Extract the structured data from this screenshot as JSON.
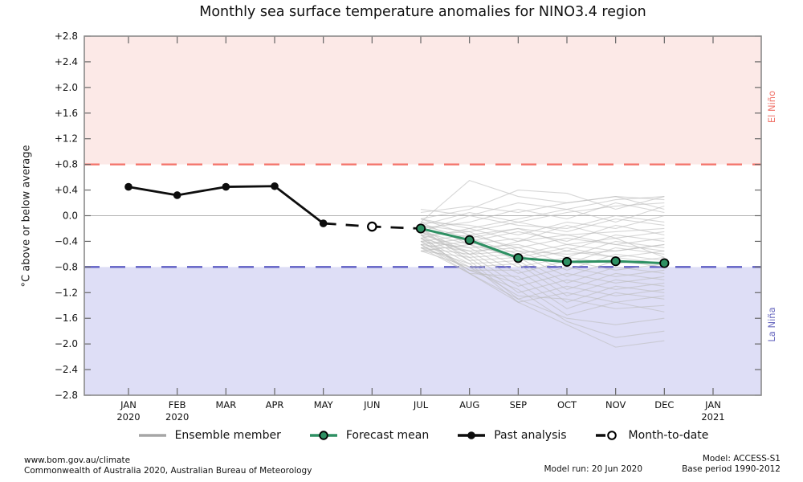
{
  "title": "Monthly sea surface temperature anomalies for NINO3.4 region",
  "side_labels": {
    "el_nino": "El Niño",
    "la_nina": "La Niña"
  },
  "legend": {
    "ensemble": "Ensemble member",
    "forecast_mean": "Forecast mean",
    "past_analysis": "Past analysis",
    "month_to_date": "Month-to-date"
  },
  "footer": {
    "url": "www.bom.gov.au/climate",
    "copyright": "Commonwealth of Australia 2020, Australian Bureau of Meteorology",
    "model_run": "Model run: 20 Jun 2020",
    "model": "Model: ACCESS-S1",
    "base_period": "Base period 1990-2012"
  },
  "colors": {
    "el_nino_band": "#fce9e7",
    "la_nina_band": "#dedef6",
    "el_nino_line": "#f4756c",
    "la_nina_line": "#5e5ec4",
    "el_nino_label": "#f0756c",
    "la_nina_label": "#6a6ac0",
    "forecast_mean": "#2e9063",
    "past_analysis": "#0d0d0d",
    "ensemble": "#bdbdbd",
    "ensemble_legend": "#a6a6a6",
    "border": "#8a8a8a",
    "zero_line": "#b3b3b3",
    "tick": "#666666"
  },
  "chart_data": {
    "type": "line",
    "title": "Monthly sea surface temperature anomalies for NINO3.4 region",
    "ylabel": "°C above or below average",
    "ylim": [
      -2.8,
      2.8
    ],
    "ytick_step": 0.4,
    "yticks": [
      {
        "v": 2.8,
        "label": "+2.8"
      },
      {
        "v": 2.4,
        "label": "+2.4"
      },
      {
        "v": 2.0,
        "label": "+2.0"
      },
      {
        "v": 1.6,
        "label": "+1.6"
      },
      {
        "v": 1.2,
        "label": "+1.2"
      },
      {
        "v": 0.8,
        "label": "+0.8"
      },
      {
        "v": 0.4,
        "label": "+0.4"
      },
      {
        "v": 0.0,
        "label": "0.0"
      },
      {
        "v": -0.4,
        "label": "−0.4"
      },
      {
        "v": -0.8,
        "label": "−0.8"
      },
      {
        "v": -1.2,
        "label": "−1.2"
      },
      {
        "v": -1.6,
        "label": "−1.6"
      },
      {
        "v": -2.0,
        "label": "−2.0"
      },
      {
        "v": -2.4,
        "label": "−2.4"
      },
      {
        "v": -2.8,
        "label": "−2.8"
      }
    ],
    "months": [
      {
        "label": "JAN",
        "year": "2020"
      },
      {
        "label": "FEB",
        "year": "2020"
      },
      {
        "label": "MAR"
      },
      {
        "label": "APR"
      },
      {
        "label": "MAY"
      },
      {
        "label": "JUN"
      },
      {
        "label": "JUL"
      },
      {
        "label": "AUG"
      },
      {
        "label": "SEP"
      },
      {
        "label": "OCT"
      },
      {
        "label": "NOV"
      },
      {
        "label": "DEC"
      },
      {
        "label": "JAN",
        "year": "2021"
      }
    ],
    "thresholds": {
      "el_nino": 0.8,
      "la_nina": -0.8
    },
    "grid": "zero-line-only",
    "legend_position": "bottom",
    "series": {
      "past_analysis": {
        "x_start": 0,
        "values": [
          0.45,
          0.32,
          0.45,
          0.46,
          -0.12
        ]
      },
      "month_to_date": {
        "x_start": 5,
        "values": [
          -0.17
        ]
      },
      "forecast_mean": {
        "x_start": 6,
        "values": [
          -0.2,
          -0.38,
          -0.66,
          -0.72,
          -0.71,
          -0.74
        ]
      },
      "ensemble_x_start": 6,
      "ensemble": [
        [
          -0.1,
          0.55,
          0.3,
          0.2,
          0.3,
          0.25
        ],
        [
          -0.05,
          0.1,
          0.4,
          0.35,
          0.1,
          0.3
        ],
        [
          0.05,
          0.15,
          0.05,
          0.2,
          0.3,
          0.1
        ],
        [
          0.1,
          0.0,
          0.2,
          0.1,
          0.25,
          0.3
        ],
        [
          -0.15,
          0.05,
          -0.1,
          0.05,
          0.15,
          0.2
        ],
        [
          -0.2,
          -0.1,
          0.1,
          -0.05,
          0.2,
          0.05
        ],
        [
          -0.05,
          -0.2,
          -0.05,
          0.1,
          -0.1,
          0.15
        ],
        [
          -0.25,
          0.0,
          -0.15,
          -0.2,
          0.0,
          -0.1
        ],
        [
          -0.1,
          -0.15,
          -0.3,
          -0.1,
          -0.2,
          0.0
        ],
        [
          -0.3,
          -0.25,
          -0.1,
          -0.25,
          -0.05,
          -0.15
        ],
        [
          -0.15,
          -0.35,
          -0.2,
          -0.3,
          -0.25,
          -0.2
        ],
        [
          -0.35,
          -0.2,
          -0.4,
          -0.15,
          -0.35,
          -0.25
        ],
        [
          -0.2,
          -0.4,
          -0.25,
          -0.4,
          -0.15,
          -0.3
        ],
        [
          -0.4,
          -0.3,
          -0.5,
          -0.35,
          -0.45,
          -0.35
        ],
        [
          -0.25,
          -0.45,
          -0.35,
          -0.55,
          -0.3,
          -0.4
        ],
        [
          -0.45,
          -0.35,
          -0.6,
          -0.45,
          -0.55,
          -0.45
        ],
        [
          -0.3,
          -0.5,
          -0.45,
          -0.65,
          -0.4,
          -0.5
        ],
        [
          -0.5,
          -0.4,
          -0.7,
          -0.55,
          -0.65,
          -0.55
        ],
        [
          -0.35,
          -0.55,
          -0.5,
          -0.75,
          -0.5,
          -0.6
        ],
        [
          -0.55,
          -0.45,
          -0.8,
          -0.65,
          -0.75,
          -0.65
        ],
        [
          -0.2,
          -0.6,
          -0.55,
          -0.85,
          -0.6,
          -0.7
        ],
        [
          -0.4,
          -0.5,
          -0.9,
          -0.7,
          -0.85,
          -0.75
        ],
        [
          -0.25,
          -0.65,
          -0.6,
          -0.95,
          -0.7,
          -0.8
        ],
        [
          -0.45,
          -0.55,
          -1.0,
          -0.8,
          -0.95,
          -0.85
        ],
        [
          -0.3,
          -0.7,
          -0.65,
          -1.05,
          -0.8,
          -0.9
        ],
        [
          -0.5,
          -0.6,
          -1.1,
          -0.9,
          -1.05,
          -0.95
        ],
        [
          -0.35,
          -0.75,
          -0.7,
          -1.15,
          -0.9,
          -1.0
        ],
        [
          -0.55,
          -0.65,
          -1.2,
          -1.0,
          -1.15,
          -1.05
        ],
        [
          -0.4,
          -0.8,
          -0.75,
          -1.25,
          -1.0,
          -1.1
        ],
        [
          -0.2,
          -0.7,
          -1.3,
          -1.1,
          -1.25,
          -1.15
        ],
        [
          -0.45,
          -0.85,
          -0.85,
          -1.35,
          -1.1,
          -1.2
        ],
        [
          -0.5,
          -0.75,
          -1.35,
          -1.2,
          -1.35,
          -1.25
        ],
        [
          -0.3,
          -0.9,
          -0.95,
          -1.45,
          -1.2,
          -1.3
        ],
        [
          -0.55,
          -0.8,
          -1.25,
          -1.3,
          -1.45,
          -1.4
        ],
        [
          -0.35,
          -0.85,
          -1.05,
          -1.55,
          -1.35,
          -1.5
        ],
        [
          -0.45,
          -0.9,
          -1.3,
          -1.6,
          -1.7,
          -1.6
        ],
        [
          -0.4,
          -0.85,
          -1.15,
          -1.65,
          -1.9,
          -1.8
        ],
        [
          -0.5,
          -0.9,
          -1.35,
          -1.7,
          -2.05,
          -1.95
        ],
        [
          -0.25,
          -0.6,
          -0.4,
          -0.3,
          -0.45,
          -0.55
        ],
        [
          -0.15,
          -0.25,
          -0.55,
          -0.6,
          -0.55,
          -0.45
        ],
        [
          -0.1,
          -0.45,
          -0.65,
          -0.5,
          -0.65,
          -0.75
        ],
        [
          -0.05,
          -0.3,
          -0.2,
          -0.45,
          -0.35,
          -0.65
        ]
      ]
    }
  }
}
